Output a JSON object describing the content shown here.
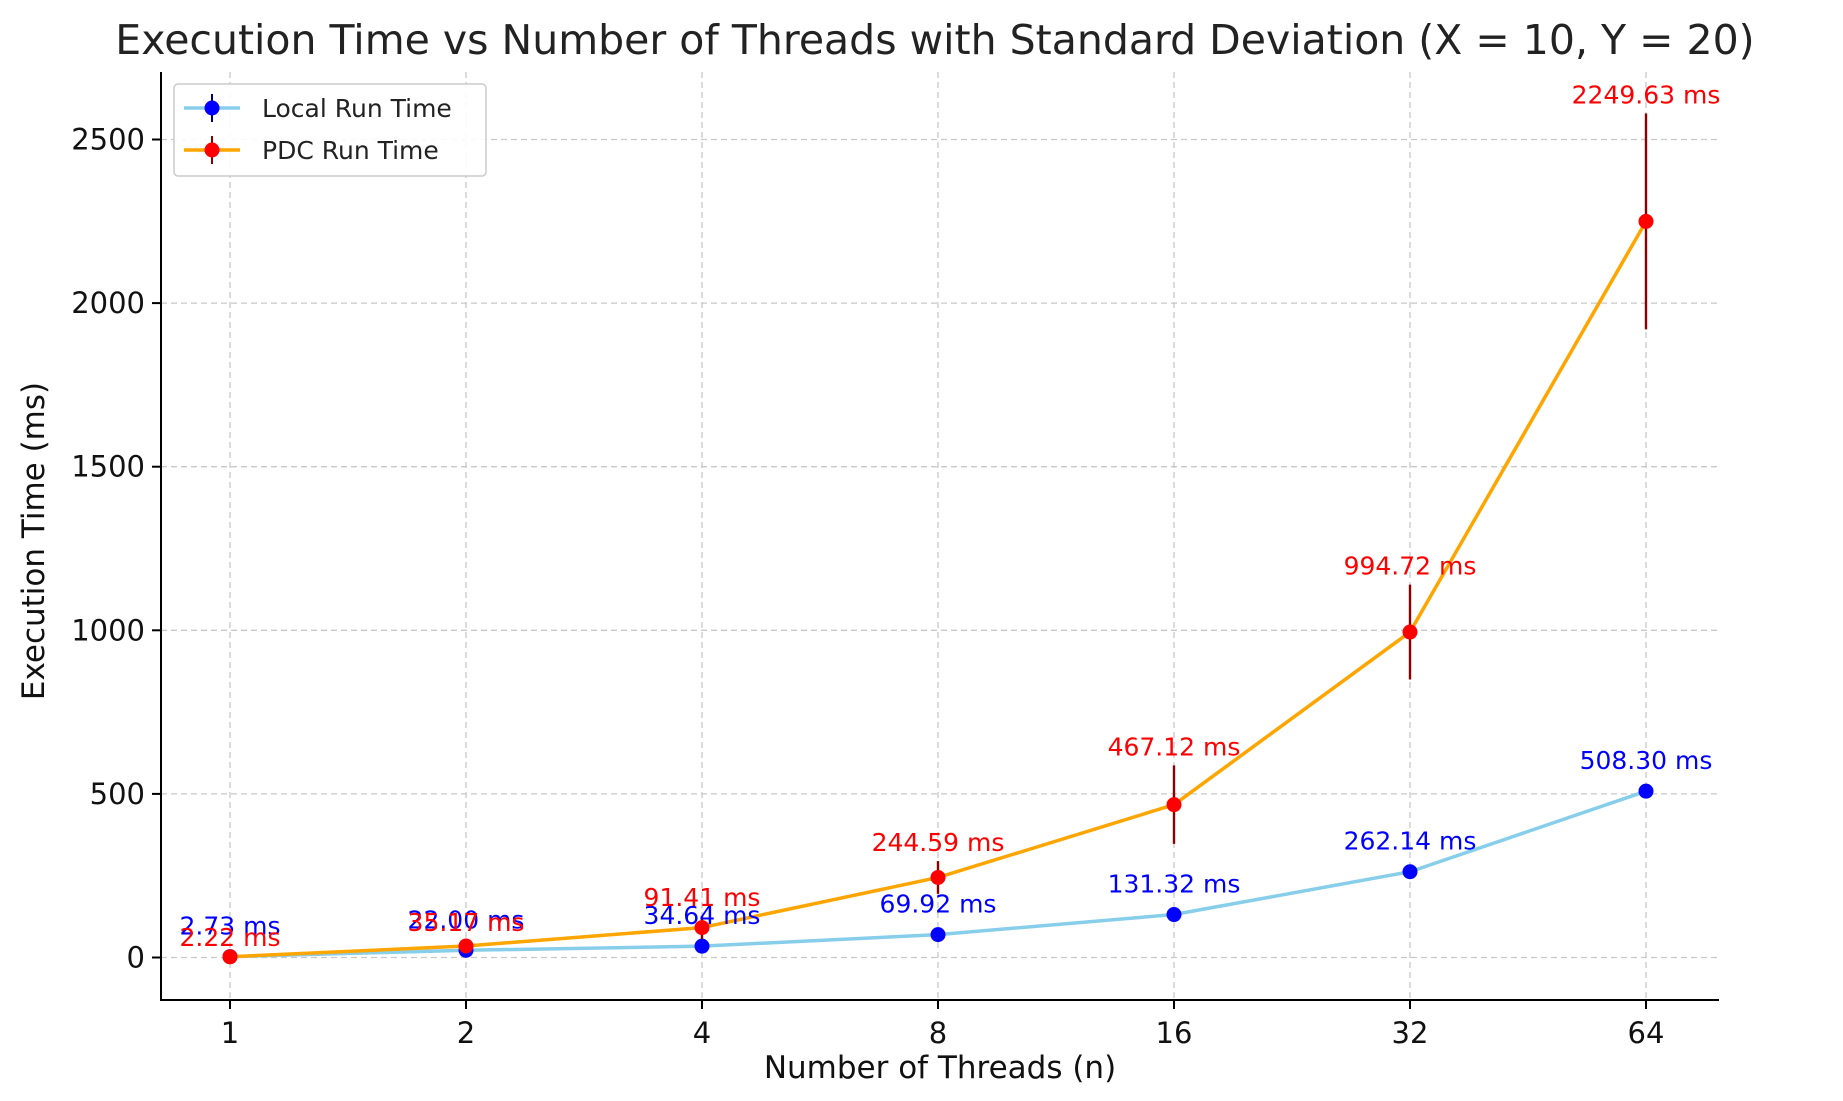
{
  "chart_data": {
    "type": "line",
    "title": "Execution Time vs Number of Threads with Standard Deviation (X = 10, Y = 20)",
    "xlabel": "Number of Threads (n)",
    "ylabel": "Execution Time (ms)",
    "categories": [
      "1",
      "2",
      "4",
      "8",
      "16",
      "32",
      "64"
    ],
    "ylim": [
      -130,
      2700
    ],
    "yticks": [
      0,
      500,
      1000,
      1500,
      2000,
      2500
    ],
    "grid": true,
    "legend_position": "top-left",
    "series": [
      {
        "name": "Local Run Time",
        "line_color": "#87ceeb",
        "marker_color": "#0000ff",
        "label_color": "#0000ff",
        "values": [
          2.73,
          22.0,
          34.64,
          69.92,
          131.32,
          262.14,
          508.3
        ],
        "errors": [
          0,
          0,
          0,
          0,
          0,
          0,
          0
        ],
        "labels": [
          "2.73 ms",
          "22.00 ms",
          "34.64 ms",
          "69.92 ms",
          "131.32 ms",
          "262.14 ms",
          "508.30 ms"
        ]
      },
      {
        "name": "PDC Run Time",
        "line_color": "#ffa500",
        "marker_color": "#ff0000",
        "label_color": "#ff0000",
        "error_color": "#8b0000",
        "values": [
          2.22,
          35.17,
          91.41,
          244.59,
          467.12,
          994.72,
          2249.63
        ],
        "errors": [
          3,
          15,
          35,
          50,
          120,
          145,
          330
        ],
        "labels": [
          "2.22 ms",
          "35.17 ms",
          "91.41 ms",
          "244.59 ms",
          "467.12 ms",
          "994.72 ms",
          "2249.63 ms"
        ]
      }
    ]
  }
}
